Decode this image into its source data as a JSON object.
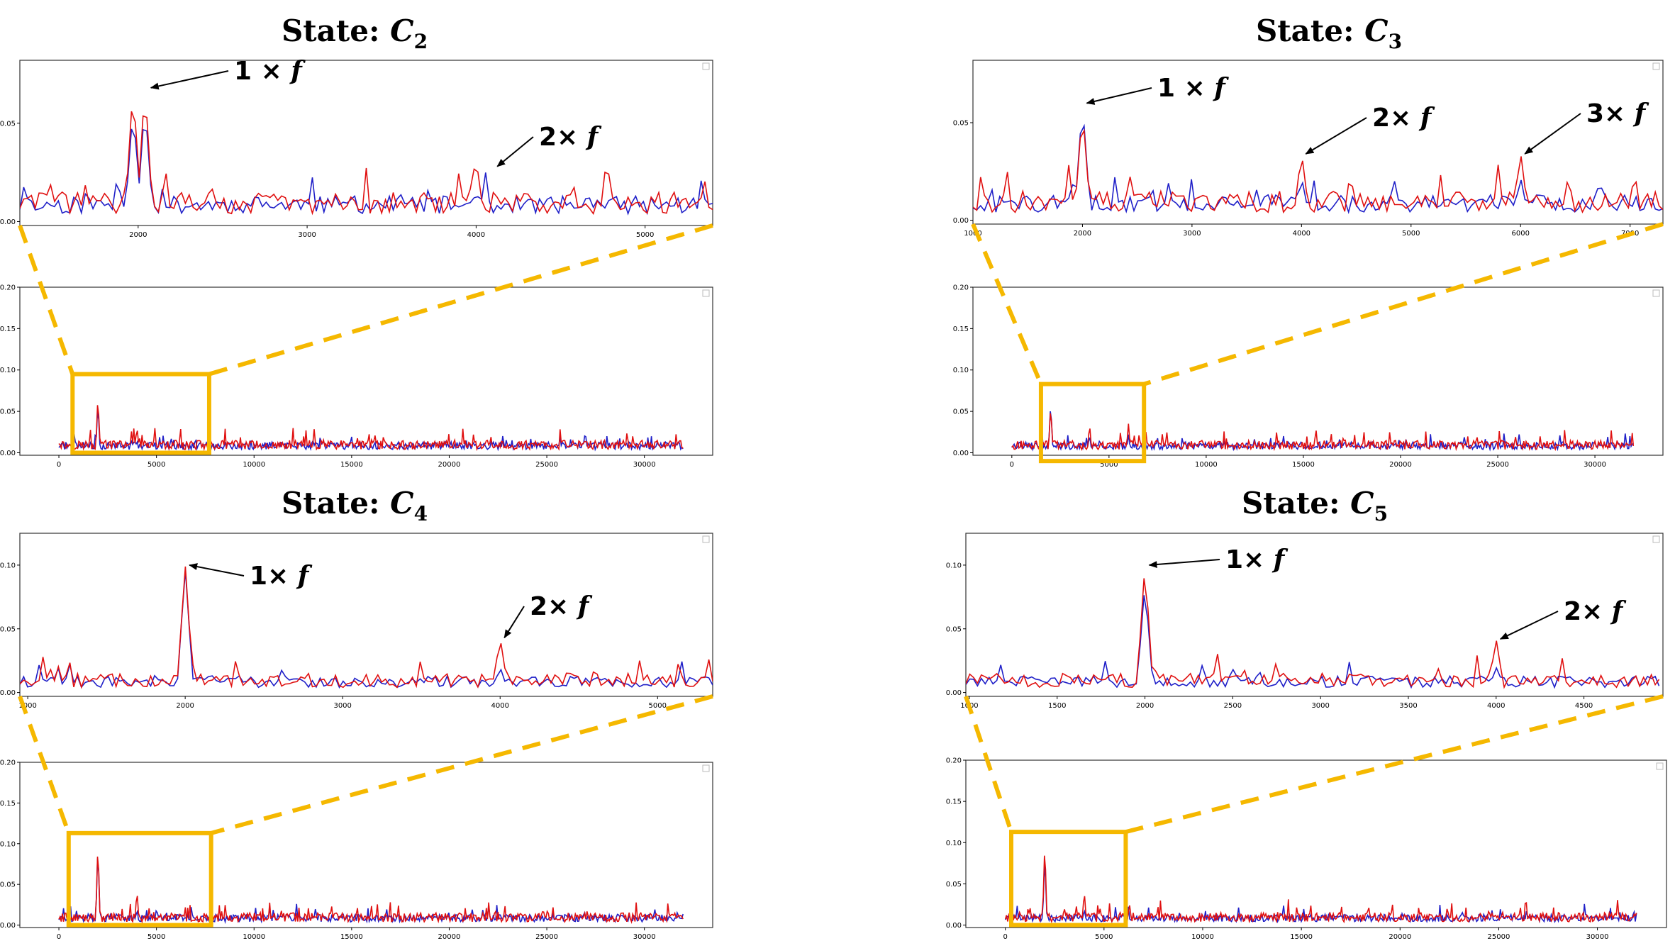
{
  "colors": {
    "series_a": "#1f1fc8",
    "series_b": "#e01010",
    "zoom_box": "#f5b800",
    "frame": "#333333"
  },
  "chart_data": [
    {
      "title_prefix": "State: ",
      "title_symbol": "C",
      "title_sub": "2",
      "type": "line",
      "zoom": {
        "x_range": [
          1300,
          5400
        ],
        "ylim": [
          -0.002,
          0.082
        ],
        "x_ticks": [
          "2000",
          "3000",
          "4000",
          "5000"
        ],
        "y_ticks": [
          "0.00",
          "0.05"
        ],
        "annotations": [
          {
            "coef": "1 ×",
            "var": "f",
            "x": 2050,
            "y": 0.068
          },
          {
            "coef": "2×",
            "var": "f",
            "x": 4100,
            "y": 0.028
          }
        ],
        "peaks": [
          {
            "x": 1970,
            "a": 0.058,
            "b": 0.069
          },
          {
            "x": 2040,
            "a": 0.06,
            "b": 0.069
          },
          {
            "x": 4000,
            "a": 0.016,
            "b": 0.032
          }
        ]
      },
      "overview": {
        "x_range": [
          -2000,
          33500
        ],
        "ylim": [
          -0.003,
          0.2
        ],
        "x_ticks": [
          "0",
          "5000",
          "10000",
          "15000",
          "20000",
          "25000",
          "30000"
        ],
        "y_ticks": [
          "0.00",
          "0.05",
          "0.10",
          "0.15",
          "0.20"
        ],
        "box": {
          "x0": 700,
          "x1": 7700,
          "y0": 0,
          "y1": 0.095
        },
        "peaks": [
          {
            "x": 2000,
            "a": 0.06,
            "b": 0.069
          },
          {
            "x": 4000,
            "a": 0.016,
            "b": 0.032
          }
        ]
      }
    },
    {
      "title_prefix": "State: ",
      "title_symbol": "C",
      "title_sub": "3",
      "type": "line",
      "zoom": {
        "x_range": [
          1000,
          7300
        ],
        "ylim": [
          -0.002,
          0.082
        ],
        "x_ticks": [
          "1000",
          "2000",
          "3000",
          "4000",
          "5000",
          "6000",
          "7000"
        ],
        "y_ticks": [
          "0.00",
          "0.05"
        ],
        "annotations": [
          {
            "coef": "1 ×",
            "var": "f",
            "x": 2000,
            "y": 0.06
          },
          {
            "coef": "2×",
            "var": "f",
            "x": 4000,
            "y": 0.034
          },
          {
            "coef": "3×",
            "var": "f",
            "x": 6000,
            "y": 0.034
          }
        ],
        "peaks": [
          {
            "x": 2000,
            "a": 0.06,
            "b": 0.057
          },
          {
            "x": 4000,
            "a": 0.022,
            "b": 0.035
          },
          {
            "x": 6000,
            "a": 0.022,
            "b": 0.035
          }
        ]
      },
      "overview": {
        "x_range": [
          -2000,
          33500
        ],
        "ylim": [
          -0.003,
          0.2
        ],
        "x_ticks": [
          "0",
          "5000",
          "10000",
          "15000",
          "20000",
          "25000",
          "30000"
        ],
        "y_ticks": [
          "0.00",
          "0.05",
          "0.10",
          "0.15",
          "0.20"
        ],
        "box": {
          "x0": 1500,
          "x1": 6800,
          "y0": -0.01,
          "y1": 0.083
        },
        "peaks": [
          {
            "x": 2000,
            "a": 0.06,
            "b": 0.057
          },
          {
            "x": 4000,
            "a": 0.022,
            "b": 0.035
          },
          {
            "x": 6000,
            "a": 0.022,
            "b": 0.035
          }
        ]
      }
    },
    {
      "title_prefix": "State: ",
      "title_symbol": "C",
      "title_sub": "4",
      "type": "line",
      "zoom": {
        "x_range": [
          950,
          5350
        ],
        "ylim": [
          -0.003,
          0.125
        ],
        "x_ticks": [
          "1000",
          "2000",
          "3000",
          "4000",
          "5000"
        ],
        "y_ticks": [
          "0.00",
          "0.05",
          "0.10"
        ],
        "annotations": [
          {
            "coef": "1×",
            "var": "f",
            "x": 2000,
            "y": 0.1
          },
          {
            "coef": "2×",
            "var": "f",
            "x": 4000,
            "y": 0.043
          }
        ],
        "peaks": [
          {
            "x": 2000,
            "a": 0.098,
            "b": 0.101
          },
          {
            "x": 4000,
            "a": 0.02,
            "b": 0.043
          }
        ]
      },
      "overview": {
        "x_range": [
          -2000,
          33500
        ],
        "ylim": [
          -0.003,
          0.2
        ],
        "x_ticks": [
          "0",
          "5000",
          "10000",
          "15000",
          "20000",
          "25000",
          "30000"
        ],
        "y_ticks": [
          "0.00",
          "0.05",
          "0.10",
          "0.15",
          "0.20"
        ],
        "box": {
          "x0": 500,
          "x1": 7800,
          "y0": 0,
          "y1": 0.113
        },
        "peaks": [
          {
            "x": 2000,
            "a": 0.098,
            "b": 0.101
          },
          {
            "x": 4000,
            "a": 0.02,
            "b": 0.043
          }
        ]
      }
    },
    {
      "title_prefix": "State: ",
      "title_symbol": "C",
      "title_sub": "5",
      "type": "line",
      "zoom": {
        "x_range": [
          980,
          4950
        ],
        "ylim": [
          -0.003,
          0.125
        ],
        "x_ticks": [
          "1000",
          "1500",
          "2000",
          "2500",
          "3000",
          "3500",
          "4000",
          "4500"
        ],
        "y_ticks": [
          "0.00",
          "0.05",
          "0.10"
        ],
        "annotations": [
          {
            "coef": "1×",
            "var": "f",
            "x": 2000,
            "y": 0.1
          },
          {
            "coef": "2×",
            "var": "f",
            "x": 4000,
            "y": 0.042
          }
        ],
        "peaks": [
          {
            "x": 2000,
            "a": 0.086,
            "b": 0.101
          },
          {
            "x": 4000,
            "a": 0.02,
            "b": 0.042
          }
        ]
      },
      "overview": {
        "x_range": [
          -2000,
          33500
        ],
        "ylim": [
          -0.003,
          0.2
        ],
        "x_ticks": [
          "0",
          "5000",
          "10000",
          "15000",
          "20000",
          "25000",
          "30000"
        ],
        "y_ticks": [
          "0.00",
          "0.05",
          "0.10",
          "0.15",
          "0.20"
        ],
        "box": {
          "x0": 300,
          "x1": 6100,
          "y0": 0,
          "y1": 0.113
        },
        "peaks": [
          {
            "x": 2000,
            "a": 0.086,
            "b": 0.101
          },
          {
            "x": 4000,
            "a": 0.02,
            "b": 0.042
          }
        ]
      }
    }
  ]
}
